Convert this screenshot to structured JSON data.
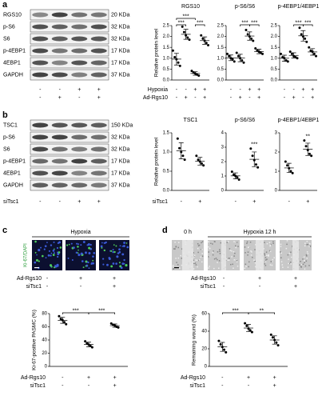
{
  "figure": {
    "a": {
      "label": "a",
      "blot": {
        "rows": [
          {
            "name": "RGS10",
            "size": "20 KDa"
          },
          {
            "name": "p-S6",
            "size": "32 KDa"
          },
          {
            "name": "S6",
            "size": "32 KDa"
          },
          {
            "name": "p-4EBP1",
            "size": "17 KDa"
          },
          {
            "name": "4EBP1",
            "size": "17 KDa"
          },
          {
            "name": "GAPDH",
            "size": "37 KDa"
          }
        ],
        "signs": [
          [
            "-",
            "-",
            "+",
            "+"
          ],
          [
            "-",
            "+",
            "-",
            "+"
          ]
        ]
      }
    },
    "b": {
      "label": "b",
      "blot": {
        "rows": [
          {
            "name": "TSC1",
            "size": "150 KDa"
          },
          {
            "name": "p-S6",
            "size": "32 KDa"
          },
          {
            "name": "S6",
            "size": "32 KDa"
          },
          {
            "name": "p-4EBP1",
            "size": "17 KDa"
          },
          {
            "name": "4EBP1",
            "size": "17 KDa"
          },
          {
            "name": "GAPDH",
            "size": "37 KDa"
          }
        ],
        "conditions": [
          {
            "name": "siTsc1",
            "signs": [
              "-",
              "-",
              "+",
              "+"
            ]
          }
        ]
      }
    },
    "c": {
      "label": "c",
      "title": "Hypoxia",
      "stain": "Ki-67/DAPI",
      "conditions": [
        {
          "name": "Ad-Rgs10",
          "signs": [
            "-",
            "+",
            "+"
          ]
        },
        {
          "name": "siTsc1",
          "signs": [
            "-",
            "-",
            "+"
          ]
        }
      ]
    },
    "d": {
      "label": "d",
      "titles": [
        "0 h",
        "Hypoxia 12 h"
      ],
      "conditions": [
        {
          "name": "Ad-Rgs10",
          "signs": [
            "-",
            "+",
            "+"
          ]
        },
        {
          "name": "siTsc1",
          "signs": [
            "-",
            "-",
            "+"
          ]
        }
      ]
    }
  },
  "chart_data": [
    {
      "type": "dot",
      "title": "RGS10",
      "ylabel": "Relative protein level",
      "ylim": [
        0,
        2.5
      ],
      "yticks": [
        {
          "value": 0,
          "label": "0.0"
        },
        0.5,
        {
          "value": 1,
          "label": "1.0"
        },
        1.5,
        {
          "value": 2,
          "label": "2.0"
        },
        2.5
      ],
      "groups": [
        {
          "points": [
            1.35,
            1.05,
            0.95,
            0.8,
            0.65
          ],
          "mean": 0.96,
          "sd": 0.27
        },
        {
          "points": [
            2.45,
            2.2,
            2.05,
            1.95,
            1.85
          ],
          "mean": 2.1,
          "sd": 0.23
        },
        {
          "points": [
            0.42,
            0.35,
            0.3,
            0.25,
            0.2
          ],
          "mean": 0.3,
          "sd": 0.08
        },
        {
          "points": [
            2.05,
            1.9,
            1.8,
            1.7,
            1.6
          ],
          "mean": 1.81,
          "sd": 0.17
        }
      ],
      "annotations": [
        {
          "text": "***",
          "groups": [
            0,
            1
          ]
        },
        {
          "text": "***",
          "groups": [
            2,
            3
          ]
        },
        {
          "text": "***",
          "groups": [
            0,
            2
          ]
        }
      ],
      "conditions": [
        {
          "name": "Hypoxia",
          "signs": [
            "-",
            "-",
            "+",
            "+"
          ]
        },
        {
          "name": "Ad-Rgs10",
          "signs": [
            "-",
            "+",
            "-",
            "+"
          ]
        }
      ]
    },
    {
      "type": "dot",
      "title": "p-S6/S6",
      "ylim": [
        0,
        2.5
      ],
      "yticks": [
        {
          "value": 0,
          "label": "0.0"
        },
        0.5,
        {
          "value": 1,
          "label": "1.0"
        },
        1.5,
        {
          "value": 2,
          "label": "2.0"
        },
        2.5
      ],
      "groups": [
        {
          "points": [
            1.2,
            1.1,
            1.0,
            0.95,
            0.85
          ],
          "mean": 1.02,
          "sd": 0.13
        },
        {
          "points": [
            1.25,
            1.1,
            1.0,
            0.9,
            0.8
          ],
          "mean": 1.01,
          "sd": 0.17
        },
        {
          "points": [
            2.3,
            2.1,
            2.0,
            1.9,
            1.8
          ],
          "mean": 2.02,
          "sd": 0.19
        },
        {
          "points": [
            1.45,
            1.35,
            1.3,
            1.25,
            1.2
          ],
          "mean": 1.31,
          "sd": 0.1
        }
      ],
      "annotations": [
        {
          "text": "***",
          "groups": [
            1,
            2
          ]
        },
        {
          "text": "***",
          "groups": [
            2,
            3
          ]
        }
      ],
      "conditions": [
        {
          "signs": [
            "-",
            "-",
            "+",
            "+"
          ]
        },
        {
          "signs": [
            "-",
            "+",
            "-",
            "+"
          ]
        }
      ]
    },
    {
      "type": "dot",
      "title": "p-4EBP1/4EBP1",
      "ylim": [
        0,
        2.5
      ],
      "yticks": [
        {
          "value": 0,
          "label": "0.0"
        },
        0.5,
        {
          "value": 1,
          "label": "1.0"
        },
        1.5,
        {
          "value": 2,
          "label": "2.0"
        },
        2.5
      ],
      "groups": [
        {
          "points": [
            1.2,
            1.05,
            1.0,
            0.9,
            0.85
          ],
          "mean": 1.0,
          "sd": 0.14
        },
        {
          "points": [
            1.3,
            1.2,
            1.1,
            1.05,
            1.0
          ],
          "mean": 1.13,
          "sd": 0.12
        },
        {
          "points": [
            2.4,
            2.1,
            2.0,
            1.9,
            1.75
          ],
          "mean": 2.03,
          "sd": 0.24
        },
        {
          "points": [
            1.5,
            1.35,
            1.3,
            1.2,
            1.1
          ],
          "mean": 1.29,
          "sd": 0.15
        }
      ],
      "annotations": [
        {
          "text": "***",
          "groups": [
            1,
            2
          ]
        },
        {
          "text": "***",
          "groups": [
            2,
            3
          ]
        }
      ],
      "conditions": [
        {
          "signs": [
            "-",
            "-",
            "+",
            "+"
          ]
        },
        {
          "signs": [
            "-",
            "+",
            "-",
            "+"
          ]
        }
      ]
    },
    {
      "type": "dot",
      "title": "TSC1",
      "ylabel": "Relative protein level",
      "ylim": [
        0,
        1.5
      ],
      "yticks": [
        {
          "value": 0,
          "label": "0.0"
        },
        0.5,
        {
          "value": 1,
          "label": "1.0"
        },
        1.5
      ],
      "groups": [
        {
          "points": [
            1.35,
            1.1,
            1.0,
            0.9,
            0.8
          ],
          "mean": 1.03,
          "sd": 0.21
        },
        {
          "points": [
            0.9,
            0.8,
            0.75,
            0.7,
            0.65
          ],
          "mean": 0.76,
          "sd": 0.1
        }
      ],
      "annotations": [],
      "conditions": [
        {
          "name": "siTsc1",
          "signs": [
            "-",
            "+"
          ]
        }
      ]
    },
    {
      "type": "dot",
      "title": "p-S6/S6",
      "ylim": [
        0,
        4
      ],
      "yticks": [
        0,
        1,
        2,
        3,
        4
      ],
      "groups": [
        {
          "points": [
            1.3,
            1.1,
            1.0,
            0.9,
            0.75
          ],
          "mean": 1.01,
          "sd": 0.21
        },
        {
          "points": [
            2.9,
            2.4,
            2.1,
            1.8,
            1.6
          ],
          "mean": 2.16,
          "sd": 0.51
        }
      ],
      "annotations": [
        {
          "text": "***",
          "groups": [
            1,
            1
          ]
        }
      ],
      "conditions": [
        {
          "signs": [
            "-",
            "+"
          ]
        }
      ]
    },
    {
      "type": "dot",
      "title": "p-4EBP1/4EBP1",
      "ylim": [
        0,
        3
      ],
      "yticks": [
        0,
        1,
        2,
        3
      ],
      "groups": [
        {
          "points": [
            1.5,
            1.3,
            1.15,
            1.0,
            0.9
          ],
          "mean": 1.17,
          "sd": 0.24
        },
        {
          "points": [
            2.6,
            2.3,
            2.1,
            1.9,
            1.8
          ],
          "mean": 2.14,
          "sd": 0.32
        }
      ],
      "annotations": [
        {
          "text": "**",
          "groups": [
            1,
            1
          ]
        }
      ],
      "conditions": [
        {
          "signs": [
            "-",
            "+"
          ]
        }
      ]
    },
    {
      "type": "dot",
      "ylabel": "Ki-67-positive PASMC (%)",
      "ylim": [
        0,
        80
      ],
      "yticks": [
        0,
        20,
        40,
        60,
        80
      ],
      "groups": [
        {
          "points": [
            76,
            72,
            70,
            67,
            64
          ],
          "mean": 69.8,
          "sd": 4.5
        },
        {
          "points": [
            38,
            35,
            33,
            31,
            29
          ],
          "mean": 33.2,
          "sd": 3.5
        },
        {
          "points": [
            65,
            63,
            62,
            60,
            59
          ],
          "mean": 61.8,
          "sd": 2.4
        }
      ],
      "annotations": [
        {
          "text": "***",
          "groups": [
            0,
            1
          ]
        },
        {
          "text": "***",
          "groups": [
            1,
            2
          ]
        }
      ],
      "conditions": [
        {
          "name": "Ad-Rgs10",
          "signs": [
            "-",
            "+",
            "+"
          ]
        },
        {
          "name": "siTsc1",
          "signs": [
            "-",
            "-",
            "+"
          ]
        }
      ]
    },
    {
      "type": "dot",
      "ylabel": "Remaining wound (%)",
      "ylim": [
        0,
        60
      ],
      "yticks": [
        0,
        20,
        40,
        60
      ],
      "groups": [
        {
          "points": [
            29,
            25,
            22,
            19,
            16
          ],
          "mean": 22.2,
          "sd": 5.1
        },
        {
          "points": [
            49,
            46,
            43,
            41,
            39
          ],
          "mean": 43.6,
          "sd": 4
        },
        {
          "points": [
            36,
            33,
            30,
            27,
            24
          ],
          "mean": 30,
          "sd": 4.7
        }
      ],
      "annotations": [
        {
          "text": "***",
          "groups": [
            0,
            1
          ]
        },
        {
          "text": "**",
          "groups": [
            1,
            2
          ]
        }
      ],
      "conditions": [
        {
          "name": "Ad-Rgs10",
          "signs": [
            "-",
            "+",
            "+"
          ]
        },
        {
          "name": "siTsc1",
          "signs": [
            "-",
            "-",
            "+"
          ]
        }
      ]
    }
  ]
}
